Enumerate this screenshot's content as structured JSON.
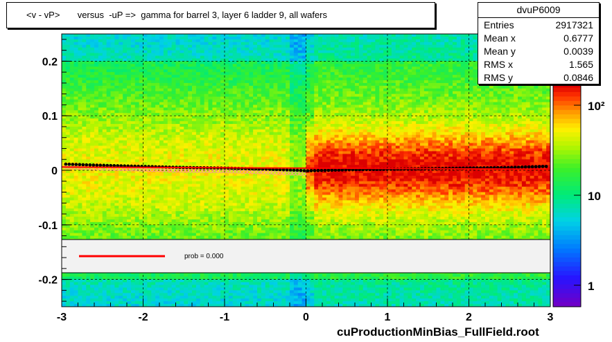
{
  "title": "<v - vP>       versus  -uP =>  gamma for barrel 3, layer 6 ladder 9, all wafers",
  "stats": {
    "name": "dvuP6009",
    "rows": [
      {
        "label": "Entries",
        "value": "2917321"
      },
      {
        "label": "Mean x",
        "value": "0.6777"
      },
      {
        "label": "Mean y",
        "value": "0.0039"
      },
      {
        "label": "RMS x",
        "value": "1.565"
      },
      {
        "label": "RMS y",
        "value": "0.0846"
      }
    ]
  },
  "footer": "cuProductionMinBias_FullField.root",
  "legend": {
    "label": "prob = 0.000",
    "line_color": "#ff0000"
  },
  "chart_data": {
    "type": "heatmap",
    "xlim": [
      -3,
      3
    ],
    "ylim": [
      -0.25,
      0.25
    ],
    "x_ticks": [
      "-3",
      "-2",
      "-1",
      "0",
      "1",
      "2",
      "3"
    ],
    "y_ticks": [
      "-0.2",
      "-0.1",
      "0",
      "0.1",
      "0.2"
    ],
    "colorbar_ticks": [
      "1",
      "10",
      "10²"
    ],
    "grid": true,
    "profile_points": {
      "x": [
        -2.9,
        -2.5,
        -2.0,
        -1.5,
        -1.0,
        -0.5,
        -0.1,
        0.0,
        0.5,
        1.0,
        1.5,
        2.0,
        2.5,
        2.9
      ],
      "y": [
        0.011,
        0.009,
        0.007,
        0.005,
        0.004,
        0.002,
        0.0,
        -0.001,
        0.001,
        0.002,
        0.003,
        0.004,
        0.005,
        0.007
      ]
    },
    "fit_line": {
      "x": [
        -3,
        3
      ],
      "y": [
        0.006,
        0.002
      ]
    }
  }
}
